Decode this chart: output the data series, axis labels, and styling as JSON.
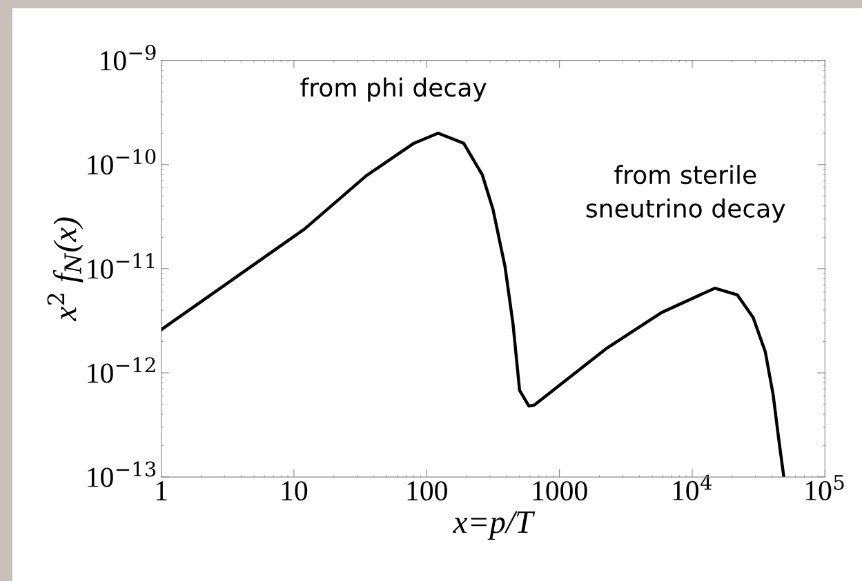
{
  "chart_data": {
    "type": "line",
    "xlabel": "x=p/T",
    "ylabel": "x$^{2}$ f$_{N}$(x)",
    "log": "xy",
    "grid": false,
    "marker": "none",
    "line_style": "solid",
    "annotations": [
      "from phi decay",
      "from sterile\nsneutrino decay"
    ],
    "xlim": [
      1,
      100000
    ],
    "xticks": [
      1,
      10,
      100,
      1000,
      {
        "value": 10000,
        "label": "10$^{4}$"
      },
      {
        "value": 100000,
        "label": "10$^{5}$"
      }
    ],
    "ylim": [
      1e-13,
      1e-09
    ],
    "yticks": [
      {
        "value": 1e-13,
        "label": "10$^{−13}$"
      },
      {
        "value": 1e-12,
        "label": "10$^{−12}$"
      },
      {
        "value": 1e-11,
        "label": "10$^{−11}$"
      },
      {
        "value": 1e-10,
        "label": "10$^{−10}$"
      },
      {
        "value": 1e-09,
        "label": "10$^{−9}$"
      }
    ],
    "series": [
      {
        "color": "#000000",
        "x": [
          1,
          12,
          35,
          80,
          122,
          190,
          263,
          316,
          389,
          447,
          501,
          589,
          646,
          2240,
          5890,
          14800,
          21900,
          28800,
          35500,
          40700,
          44700,
          49000
        ],
        "values": [
          2.6e-12,
          2.4e-11,
          7.8e-11,
          1.6e-10,
          2e-10,
          1.6e-10,
          7.9e-11,
          3.7e-11,
          1.05e-11,
          2.95e-12,
          6.8e-13,
          4.8e-13,
          4.9e-13,
          1.7e-12,
          3.8e-12,
          6.5e-12,
          5.6e-12,
          3.4e-12,
          1.6e-12,
          6.2e-13,
          2.4e-13,
          1e-13
        ]
      }
    ]
  }
}
